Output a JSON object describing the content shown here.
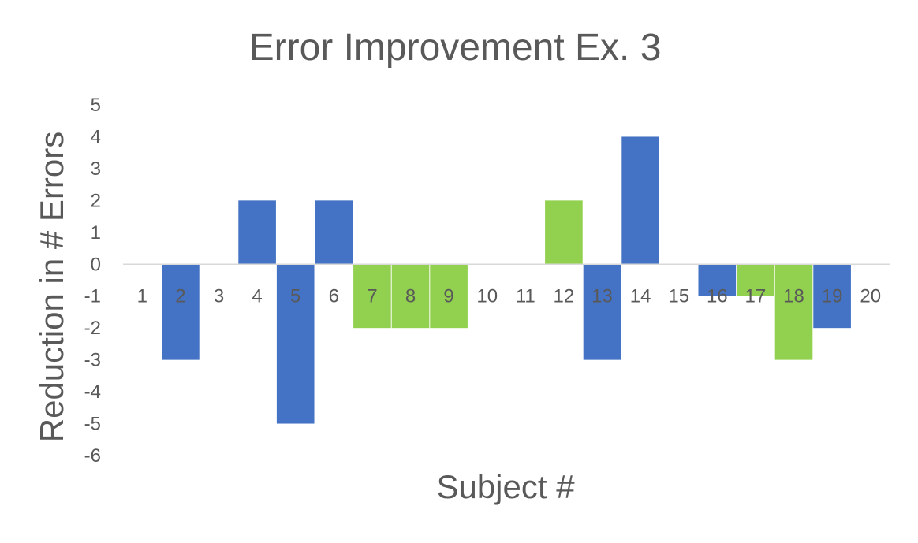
{
  "colors": {
    "background": "#ffffff",
    "text": "#595959",
    "axis": "#d9d9d9",
    "series_blue": "#4472c4",
    "series_green": "#92d050"
  },
  "chart_data": {
    "type": "bar",
    "title": "Error Improvement Ex. 3",
    "xlabel": "Subject #",
    "ylabel": "Reduction in # Errors",
    "ylim": [
      -6,
      5
    ],
    "yticks": [
      -6,
      -5,
      -4,
      -3,
      -2,
      -1,
      0,
      1,
      2,
      3,
      4,
      5
    ],
    "grid": false,
    "legend": "none",
    "categories": [
      "1",
      "2",
      "3",
      "4",
      "5",
      "6",
      "7",
      "8",
      "9",
      "10",
      "11",
      "12",
      "13",
      "14",
      "15",
      "16",
      "17",
      "18",
      "19",
      "20"
    ],
    "values": [
      0,
      -3,
      0,
      2,
      -5,
      2,
      -2,
      -2,
      -2,
      0,
      0,
      2,
      -3,
      4,
      0,
      -1,
      -1,
      -3,
      -2,
      0
    ],
    "bar_colors": [
      "#4472c4",
      "#4472c4",
      "#4472c4",
      "#4472c4",
      "#4472c4",
      "#4472c4",
      "#92d050",
      "#92d050",
      "#92d050",
      "#4472c4",
      "#4472c4",
      "#92d050",
      "#4472c4",
      "#4472c4",
      "#4472c4",
      "#4472c4",
      "#92d050",
      "#92d050",
      "#4472c4",
      "#4472c4"
    ]
  }
}
